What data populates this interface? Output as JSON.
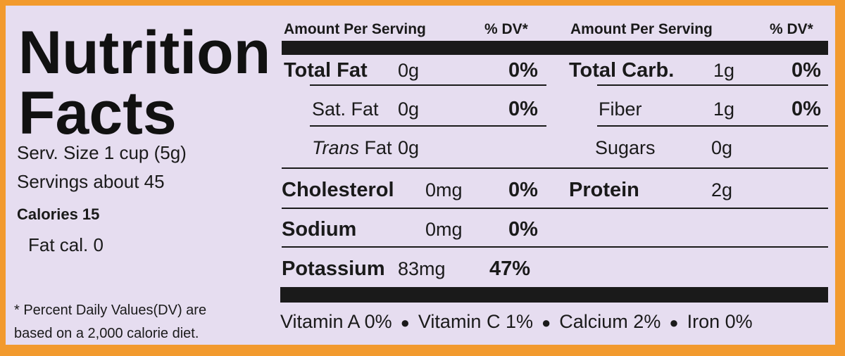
{
  "title": "Nutrition Facts",
  "serving_size": "Serv. Size 1 cup  (5g)",
  "servings": "Servings about  45",
  "calories": "Calories 15",
  "fat_calories": "Fat cal. 0",
  "footnote": "* Percent Daily Values(DV) are based on a 2,000 calorie diet.",
  "headers": [
    "Amount Per Serving",
    "% DV*",
    "Amount Per Serving",
    "% DV*"
  ],
  "left_rows": [
    {
      "nutrient": "Total Fat",
      "amount": "0g",
      "dv": "0%"
    },
    {
      "nutrient": "Sat. Fat",
      "amount": "0g",
      "dv": "0%"
    },
    {
      "nutrient_italic": "Trans",
      "nutrient": "Fat",
      "amount": "0g"
    },
    {
      "nutrient": "Cholesterol",
      "amount": "0mg",
      "dv": "0%"
    },
    {
      "nutrient": "Sodium",
      "amount": "0mg",
      "dv": "0%"
    },
    {
      "nutrient": "Potassium",
      "amount": "83mg",
      "dv": "47%"
    }
  ],
  "right_rows": [
    {
      "nutrient": "Total Carb.",
      "amount": "1g",
      "dv": "0%"
    },
    {
      "nutrient": "Fiber",
      "amount": "1g",
      "dv": "0%"
    },
    {
      "nutrient": "Sugars",
      "amount": "0g"
    },
    {
      "nutrient": "Protein",
      "amount": "2g"
    }
  ],
  "vitamins": [
    "Vitamin A 0%",
    "Vitamin C 1%",
    "Calcium 2%",
    "Iron 0%"
  ]
}
